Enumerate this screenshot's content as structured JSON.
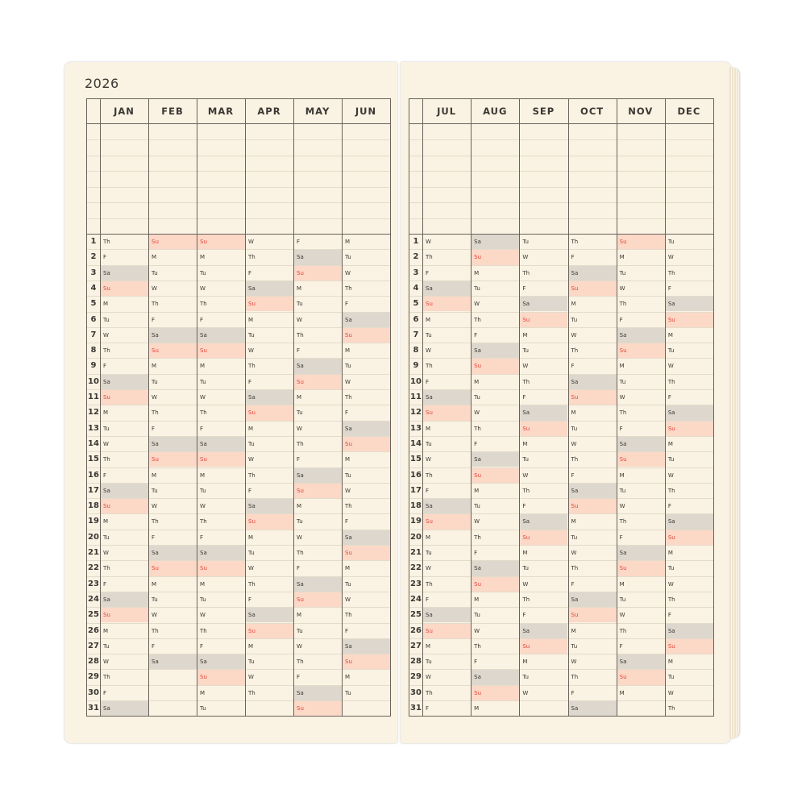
{
  "year": "2026",
  "colors": {
    "saturday_fill": "#ddd7cd",
    "sunday_fill": "#fcd8c7",
    "sunday_text": "#e2473a",
    "paper": "#faf2e2"
  },
  "day_numbers": [
    "1",
    "2",
    "3",
    "4",
    "5",
    "6",
    "7",
    "8",
    "9",
    "10",
    "11",
    "12",
    "13",
    "14",
    "15",
    "16",
    "17",
    "18",
    "19",
    "20",
    "21",
    "22",
    "23",
    "24",
    "25",
    "26",
    "27",
    "28",
    "29",
    "30",
    "31"
  ],
  "left_page": {
    "months": [
      {
        "name": "JAN",
        "days": [
          "Th",
          "F",
          "Sa",
          "Su",
          "M",
          "Tu",
          "W",
          "Th",
          "F",
          "Sa",
          "Su",
          "M",
          "Tu",
          "W",
          "Th",
          "F",
          "Sa",
          "Su",
          "M",
          "Tu",
          "W",
          "Th",
          "F",
          "Sa",
          "Su",
          "M",
          "Tu",
          "W",
          "Th",
          "F",
          "Sa"
        ]
      },
      {
        "name": "FEB",
        "days": [
          "Su",
          "M",
          "Tu",
          "W",
          "Th",
          "F",
          "Sa",
          "Su",
          "M",
          "Tu",
          "W",
          "Th",
          "F",
          "Sa",
          "Su",
          "M",
          "Tu",
          "W",
          "Th",
          "F",
          "Sa",
          "Su",
          "M",
          "Tu",
          "W",
          "Th",
          "F",
          "Sa"
        ]
      },
      {
        "name": "MAR",
        "days": [
          "Su",
          "M",
          "Tu",
          "W",
          "Th",
          "F",
          "Sa",
          "Su",
          "M",
          "Tu",
          "W",
          "Th",
          "F",
          "Sa",
          "Su",
          "M",
          "Tu",
          "W",
          "Th",
          "F",
          "Sa",
          "Su",
          "M",
          "Tu",
          "W",
          "Th",
          "F",
          "Sa",
          "Su",
          "M",
          "Tu"
        ]
      },
      {
        "name": "APR",
        "days": [
          "W",
          "Th",
          "F",
          "Sa",
          "Su",
          "M",
          "Tu",
          "W",
          "Th",
          "F",
          "Sa",
          "Su",
          "M",
          "Tu",
          "W",
          "Th",
          "F",
          "Sa",
          "Su",
          "M",
          "Tu",
          "W",
          "Th",
          "F",
          "Sa",
          "Su",
          "M",
          "Tu",
          "W",
          "Th"
        ]
      },
      {
        "name": "MAY",
        "days": [
          "F",
          "Sa",
          "Su",
          "M",
          "Tu",
          "W",
          "Th",
          "F",
          "Sa",
          "Su",
          "M",
          "Tu",
          "W",
          "Th",
          "F",
          "Sa",
          "Su",
          "M",
          "Tu",
          "W",
          "Th",
          "F",
          "Sa",
          "Su",
          "M",
          "Tu",
          "W",
          "Th",
          "F",
          "Sa",
          "Su"
        ]
      },
      {
        "name": "JUN",
        "days": [
          "M",
          "Tu",
          "W",
          "Th",
          "F",
          "Sa",
          "Su",
          "M",
          "Tu",
          "W",
          "Th",
          "F",
          "Sa",
          "Su",
          "M",
          "Tu",
          "W",
          "Th",
          "F",
          "Sa",
          "Su",
          "M",
          "Tu",
          "W",
          "Th",
          "F",
          "Sa",
          "Su",
          "M",
          "Tu"
        ]
      }
    ]
  },
  "right_page": {
    "months": [
      {
        "name": "JUL",
        "days": [
          "W",
          "Th",
          "F",
          "Sa",
          "Su",
          "M",
          "Tu",
          "W",
          "Th",
          "F",
          "Sa",
          "Su",
          "M",
          "Tu",
          "W",
          "Th",
          "F",
          "Sa",
          "Su",
          "M",
          "Tu",
          "W",
          "Th",
          "F",
          "Sa",
          "Su",
          "M",
          "Tu",
          "W",
          "Th",
          "F"
        ]
      },
      {
        "name": "AUG",
        "days": [
          "Sa",
          "Su",
          "M",
          "Tu",
          "W",
          "Th",
          "F",
          "Sa",
          "Su",
          "M",
          "Tu",
          "W",
          "Th",
          "F",
          "Sa",
          "Su",
          "M",
          "Tu",
          "W",
          "Th",
          "F",
          "Sa",
          "Su",
          "M",
          "Tu",
          "W",
          "Th",
          "F",
          "Sa",
          "Su",
          "M"
        ]
      },
      {
        "name": "SEP",
        "days": [
          "Tu",
          "W",
          "Th",
          "F",
          "Sa",
          "Su",
          "M",
          "Tu",
          "W",
          "Th",
          "F",
          "Sa",
          "Su",
          "M",
          "Tu",
          "W",
          "Th",
          "F",
          "Sa",
          "Su",
          "M",
          "Tu",
          "W",
          "Th",
          "F",
          "Sa",
          "Su",
          "M",
          "Tu",
          "W"
        ]
      },
      {
        "name": "OCT",
        "days": [
          "Th",
          "F",
          "Sa",
          "Su",
          "M",
          "Tu",
          "W",
          "Th",
          "F",
          "Sa",
          "Su",
          "M",
          "Tu",
          "W",
          "Th",
          "F",
          "Sa",
          "Su",
          "M",
          "Tu",
          "W",
          "Th",
          "F",
          "Sa",
          "Su",
          "M",
          "Tu",
          "W",
          "Th",
          "F",
          "Sa"
        ]
      },
      {
        "name": "NOV",
        "days": [
          "Su",
          "M",
          "Tu",
          "W",
          "Th",
          "F",
          "Sa",
          "Su",
          "M",
          "Tu",
          "W",
          "Th",
          "F",
          "Sa",
          "Su",
          "M",
          "Tu",
          "W",
          "Th",
          "F",
          "Sa",
          "Su",
          "M",
          "Tu",
          "W",
          "Th",
          "F",
          "Sa",
          "Su",
          "M"
        ]
      },
      {
        "name": "DEC",
        "days": [
          "Tu",
          "W",
          "Th",
          "F",
          "Sa",
          "Su",
          "M",
          "Tu",
          "W",
          "Th",
          "F",
          "Sa",
          "Su",
          "M",
          "Tu",
          "W",
          "Th",
          "F",
          "Sa",
          "Su",
          "M",
          "Tu",
          "W",
          "Th",
          "F",
          "Sa",
          "Su",
          "M",
          "Tu",
          "W",
          "Th"
        ]
      }
    ]
  }
}
